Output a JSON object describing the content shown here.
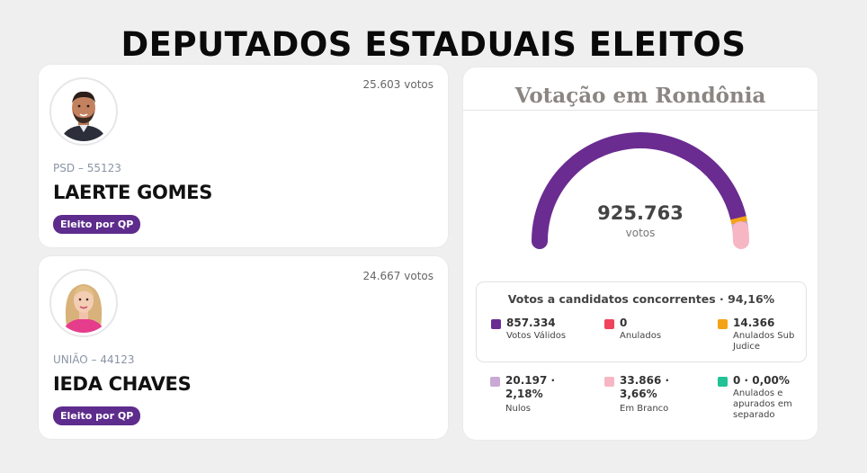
{
  "page": {
    "title": "DEPUTADOS ESTADUAIS ELEITOS"
  },
  "candidates": [
    {
      "votes": "25.603 votos",
      "party": "PSD – 55123",
      "name": "LAERTE GOMES",
      "badge": "Eleito por QP"
    },
    {
      "votes": "24.667 votos",
      "party": "UNIÃO – 44123",
      "name": "IEDA CHAVES",
      "badge": "Eleito por QP"
    }
  ],
  "panel": {
    "title": "Votação em Rondônia",
    "total": "925.763",
    "total_unit": "votos",
    "stats_title": "Votos a candidatos concorrentes · 94,16%",
    "stats": [
      {
        "value": "857.334",
        "label": "Votos Válidos",
        "color": "#6a2c91"
      },
      {
        "value": "0",
        "label": "Anulados",
        "color": "#f0435c"
      },
      {
        "value": "14.366",
        "label": "Anulados Sub Judice",
        "color": "#f5a316"
      },
      {
        "value": "20.197 · 2,18%",
        "label": "Nulos",
        "color": "#c9a9d6"
      },
      {
        "value": "33.866 · 3,66%",
        "label": "Em Branco",
        "color": "#f7b6c4"
      },
      {
        "value": "0 · 0,00%",
        "label": "Anulados e apurados em separado",
        "color": "#21c297"
      }
    ]
  },
  "gauge_data": {
    "segments": [
      {
        "name": "Votos Válidos",
        "value": 857334,
        "color": "#6a2c91"
      },
      {
        "name": "Anulados Sub Judice",
        "value": 14366,
        "color": "#f5a316"
      },
      {
        "name": "Nulos",
        "value": 20197,
        "color": "#c9a9d6"
      },
      {
        "name": "Em Branco",
        "value": 33866,
        "color": "#f7b6c4"
      }
    ]
  }
}
